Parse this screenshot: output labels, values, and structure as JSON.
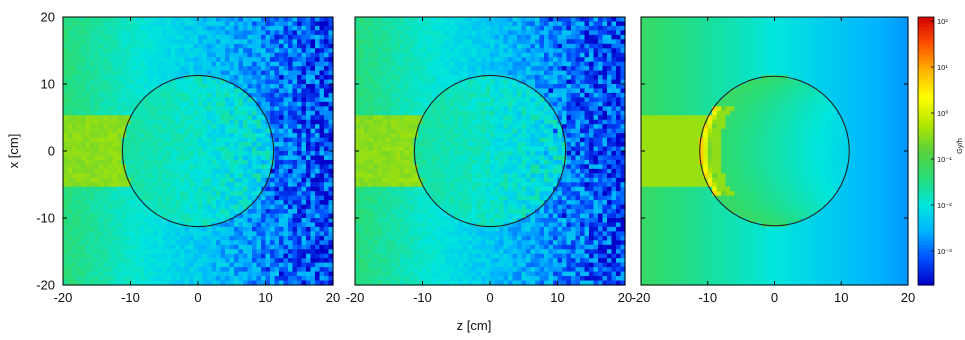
{
  "chart_data": [
    {
      "type": "heatmap",
      "panel": 1,
      "xlabel": "z [cm]",
      "ylabel": "x [cm]",
      "xlim": [
        -20,
        20
      ],
      "ylim": [
        -20,
        20
      ],
      "x_ticks": [
        "-20",
        "-10",
        "0",
        "10",
        "20"
      ],
      "y_ticks": [
        "-20",
        "-10",
        "0",
        "10",
        "20"
      ],
      "overlay_circle": {
        "center_z": 0,
        "center_x": 0,
        "radius": 11.2
      },
      "colorbar_label": "Gy/h",
      "colorbar_scale": "log",
      "style": "noisy"
    },
    {
      "type": "heatmap",
      "panel": 2,
      "xlabel": "z [cm]",
      "xlim": [
        -20,
        20
      ],
      "ylim": [
        -20,
        20
      ],
      "x_ticks": [
        "-20",
        "-10",
        "0",
        "10",
        "20"
      ],
      "overlay_circle": {
        "center_z": 0,
        "center_x": 0,
        "radius": 11.2
      },
      "colorbar_label": "Gy/h",
      "colorbar_scale": "log",
      "style": "noisy"
    },
    {
      "type": "heatmap",
      "panel": 3,
      "xlabel": "z [cm]",
      "xlim": [
        -20,
        20
      ],
      "ylim": [
        -20,
        20
      ],
      "x_ticks": [
        "-20",
        "-10",
        "0",
        "10",
        "20"
      ],
      "overlay_circle": {
        "center_z": 0,
        "center_x": 0,
        "radius": 11.2
      },
      "colorbar_label": "Gy/h",
      "colorbar_scale": "log",
      "colorbar_ticks": [
        "10²",
        "10¹",
        "10⁰",
        "10⁻¹",
        "10⁻²",
        "10⁻³"
      ],
      "style": "smooth",
      "hotspot": {
        "z": -10,
        "x": 0,
        "note": "entrance surface dose peak"
      }
    }
  ],
  "shared_xlabel": "z [cm]",
  "colors": {
    "colormap": [
      "#0000c8",
      "#0050ff",
      "#00b4ff",
      "#00e6dc",
      "#28dc78",
      "#5ad23c",
      "#b4e600",
      "#ffff00",
      "#ffb400",
      "#ff5000",
      "#d20000"
    ]
  }
}
